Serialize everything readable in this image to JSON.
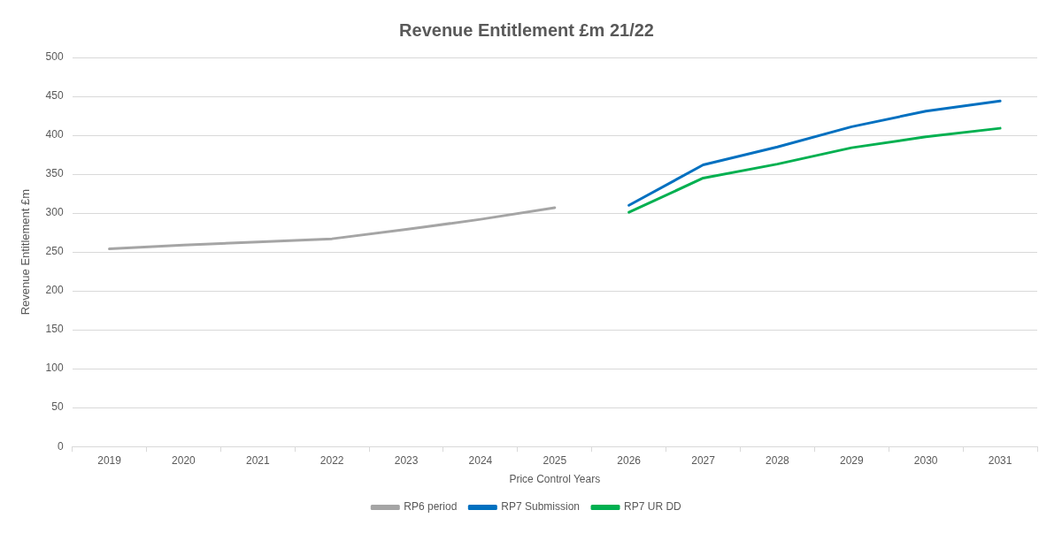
{
  "chart_data": {
    "type": "line",
    "title": "Revenue Entitlement £m 21/22",
    "xlabel": "Price Control Years",
    "ylabel": "Revenue Entitlement £m",
    "categories": [
      "2019",
      "2020",
      "2021",
      "2022",
      "2023",
      "2024",
      "2025",
      "2026",
      "2027",
      "2028",
      "2029",
      "2030",
      "2031"
    ],
    "series": [
      {
        "name": "RP6 period",
        "color": "#a5a5a5",
        "values": [
          254,
          259,
          263,
          267,
          279,
          292,
          307,
          null,
          null,
          null,
          null,
          null,
          null
        ]
      },
      {
        "name": "RP7 Submission",
        "color": "#0070c0",
        "values": [
          null,
          null,
          null,
          null,
          null,
          null,
          null,
          310,
          362,
          385,
          411,
          431,
          444
        ]
      },
      {
        "name": "RP7 UR DD",
        "color": "#00b050",
        "values": [
          null,
          null,
          null,
          null,
          null,
          null,
          null,
          301,
          345,
          363,
          384,
          398,
          409
        ]
      }
    ],
    "ylim": [
      0,
      500
    ],
    "yticks": [
      0,
      50,
      100,
      150,
      200,
      250,
      300,
      350,
      400,
      450,
      500
    ],
    "grid": "y",
    "legend": "bottom",
    "marker": "none",
    "line_style": "solid"
  }
}
